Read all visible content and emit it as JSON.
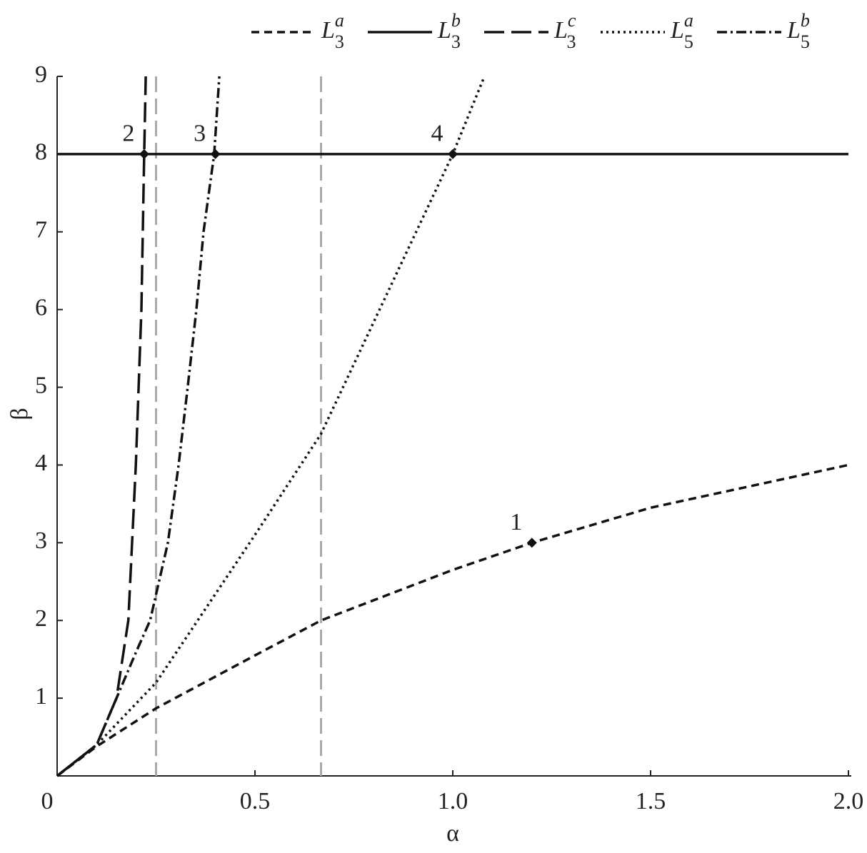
{
  "chart_data": {
    "type": "line",
    "xlabel": "α",
    "ylabel": "β",
    "xlim": [
      0,
      2
    ],
    "ylim": [
      0,
      9
    ],
    "xticks": [
      0,
      0.5,
      {
        "value": 1,
        "label": "1.0"
      },
      1.5,
      {
        "value": 2,
        "label": "2.0"
      }
    ],
    "yticks": [
      1,
      2,
      3,
      4,
      5,
      6,
      7,
      8,
      9
    ],
    "series": [
      {
        "name": "L",
        "subscript": "3",
        "superscript": "a",
        "color": "#111111",
        "dash": "11,7",
        "x": [
          0,
          0.1,
          0.25,
          0.5,
          0.667,
          1.0,
          1.2,
          1.5,
          2.0
        ],
        "values": [
          0,
          0.38,
          0.87,
          1.55,
          2.0,
          2.65,
          3.0,
          3.45,
          4.0
        ]
      },
      {
        "name": "L",
        "subscript": "3",
        "superscript": "b",
        "color": "#111111",
        "dash": "none",
        "x": [
          0,
          2.0
        ],
        "values": [
          8,
          8
        ]
      },
      {
        "name": "L",
        "subscript": "3",
        "superscript": "c",
        "color": "#111111",
        "dash": "28,10",
        "x": [
          0,
          0.1,
          0.15,
          0.18,
          0.199,
          0.213,
          0.22,
          0.224
        ],
        "values": [
          0,
          0.4,
          1,
          2,
          4,
          6,
          8,
          9
        ]
      },
      {
        "name": "L",
        "subscript": "5",
        "superscript": "a",
        "color": "#111111",
        "dash": "3,5",
        "x": [
          0,
          0.1,
          0.25,
          0.5,
          0.667,
          1.0,
          1.08
        ],
        "values": [
          0,
          0.4,
          1.2,
          3.1,
          4.4,
          8.0,
          9.0
        ]
      },
      {
        "name": "L",
        "subscript": "5",
        "superscript": "b",
        "color": "#111111",
        "dash": "14,5,3,5",
        "x": [
          0,
          0.1,
          0.2,
          0.235,
          0.28,
          0.307,
          0.33,
          0.352,
          0.37,
          0.397,
          0.41
        ],
        "values": [
          0,
          0.4,
          1.6,
          2,
          3,
          4,
          5,
          6,
          7,
          8,
          9
        ]
      }
    ],
    "vlines": [
      0.25,
      0.667
    ],
    "vline_color": "#aaaaaa",
    "points": [
      {
        "label": "1",
        "x": 1.2,
        "y": 3
      },
      {
        "label": "2",
        "x": 0.22,
        "y": 8
      },
      {
        "label": "3",
        "x": 0.4,
        "y": 8
      },
      {
        "label": "4",
        "x": 1.0,
        "y": 8
      }
    ]
  }
}
